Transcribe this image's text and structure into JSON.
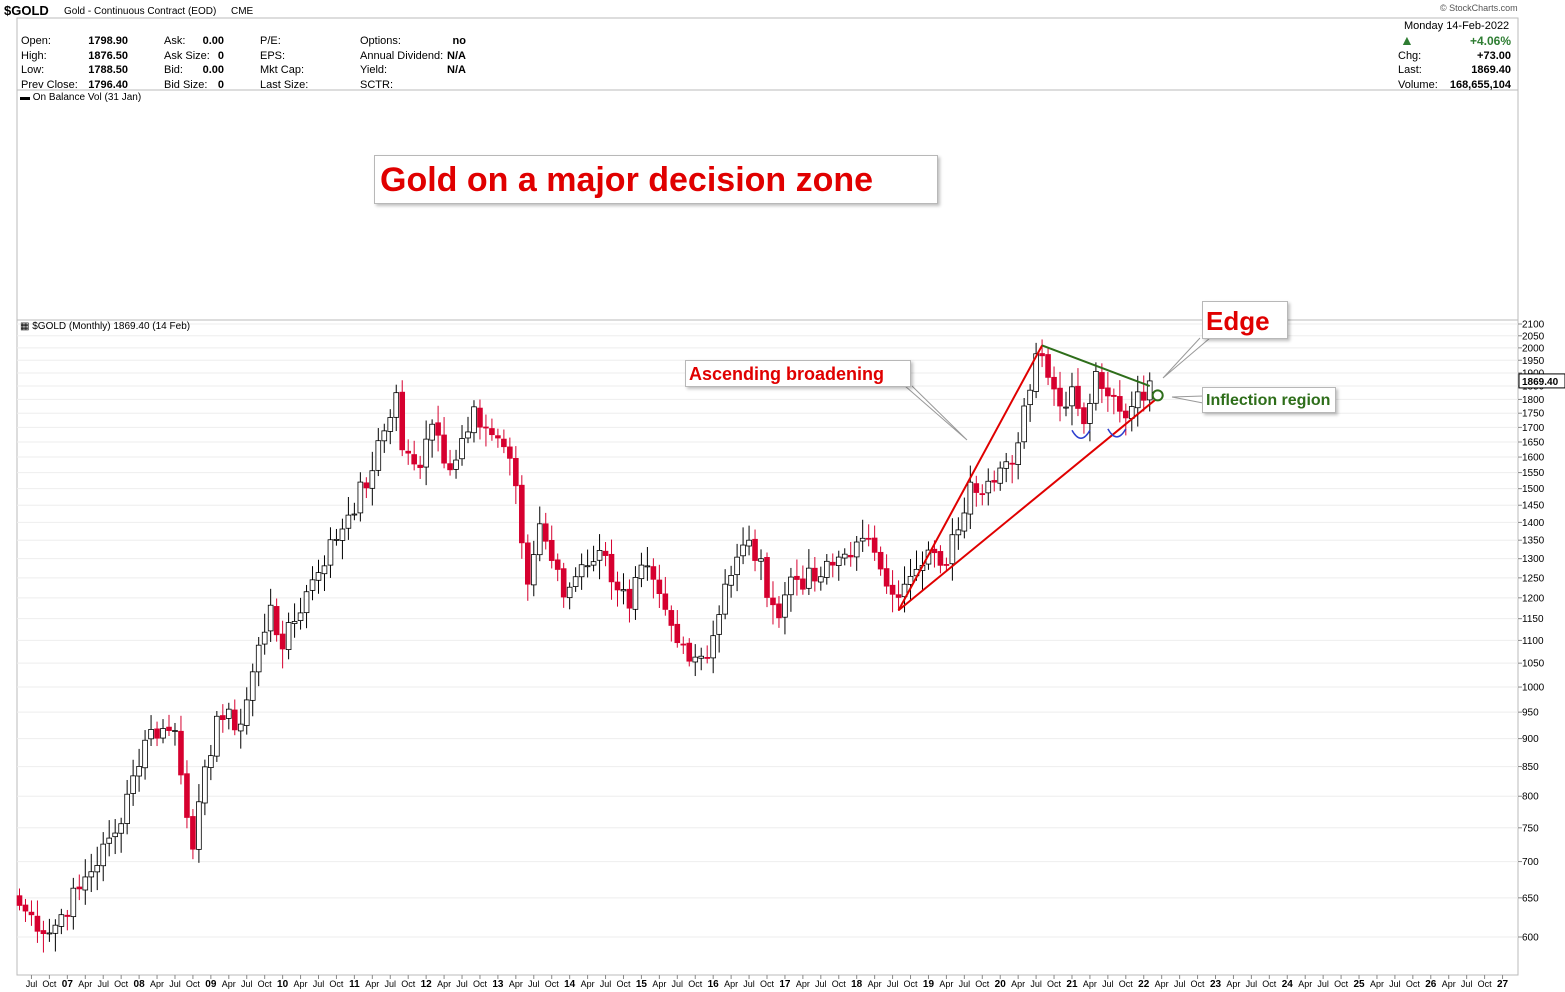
{
  "header": {
    "symbol": "$GOLD",
    "description": "Gold - Continuous Contract (EOD)",
    "exchange": "CME",
    "watermark": "© StockCharts.com",
    "date": "Monday  14-Feb-2022",
    "stats_col1": [
      {
        "label": "Open:",
        "value": "1798.90"
      },
      {
        "label": "High:",
        "value": "1876.50"
      },
      {
        "label": "Low:",
        "value": "1788.50"
      },
      {
        "label": "Prev Close:",
        "value": "1796.40"
      }
    ],
    "stats_col2": [
      {
        "label": "Ask:",
        "value": "0.00"
      },
      {
        "label": "Ask Size:",
        "value": "0"
      },
      {
        "label": "Bid:",
        "value": "0.00"
      },
      {
        "label": "Bid Size:",
        "value": "0"
      }
    ],
    "stats_col3": [
      {
        "label": "P/E:",
        "value": ""
      },
      {
        "label": "EPS:",
        "value": ""
      },
      {
        "label": "Mkt Cap:",
        "value": ""
      },
      {
        "label": "Last Size:",
        "value": ""
      }
    ],
    "stats_col4": [
      {
        "label": "Options:",
        "value": "no"
      },
      {
        "label": "Annual Dividend:",
        "value": "N/A"
      },
      {
        "label": "Yield:",
        "value": "N/A"
      },
      {
        "label": "SCTR:",
        "value": ""
      }
    ],
    "right_stats": [
      {
        "label": "",
        "value": "+4.06%"
      },
      {
        "label": "Chg:",
        "value": "+73.00"
      },
      {
        "label": "Last:",
        "value": "1869.40"
      },
      {
        "label": "Volume:",
        "value": "168,655,104"
      }
    ],
    "up_color": "#2e7d32"
  },
  "indicator_panel": {
    "legend": "On Balance Vol (31 Jan)"
  },
  "price_panel": {
    "legend": "$GOLD (Monthly) 1869.40 (14 Feb)",
    "last_price_label": "1869.40"
  },
  "annotations": {
    "title": "Gold on a major decision zone",
    "ascending": "Ascending broadening",
    "edge": "Edge",
    "inflection": "Inflection region",
    "red": "#e00000",
    "green": "#2e6e1a"
  },
  "chart_data": {
    "type": "candlestick",
    "interval": "monthly",
    "y_axis_ticks": [
      600,
      650,
      700,
      750,
      800,
      850,
      900,
      950,
      1000,
      1050,
      1100,
      1150,
      1200,
      1250,
      1300,
      1350,
      1400,
      1450,
      1500,
      1550,
      1600,
      1650,
      1700,
      1750,
      1800,
      1850,
      1900,
      1950,
      2000,
      2050,
      2100
    ],
    "ylim": [
      560,
      2100
    ],
    "x_axis_labels": [
      "Jul",
      "Oct",
      "07",
      "Apr",
      "Jul",
      "Oct",
      "08",
      "Apr",
      "Jul",
      "Oct",
      "09",
      "Apr",
      "Jul",
      "Oct",
      "10",
      "Apr",
      "Jul",
      "Oct",
      "11",
      "Apr",
      "Jul",
      "Oct",
      "12",
      "Apr",
      "Jul",
      "Oct",
      "13",
      "Apr",
      "Jul",
      "Oct",
      "14",
      "Apr",
      "Jul",
      "Oct",
      "15",
      "Apr",
      "Jul",
      "Oct",
      "16",
      "Apr",
      "Jul",
      "Oct",
      "17",
      "Apr",
      "Jul",
      "Oct",
      "18",
      "Apr",
      "Jul",
      "Oct",
      "19",
      "Apr",
      "Jul",
      "Oct",
      "20",
      "Apr",
      "Jul",
      "Oct",
      "21",
      "Apr",
      "Jul",
      "Oct",
      "22",
      "Apr",
      "Jul",
      "Oct",
      "23",
      "Apr",
      "Jul",
      "Oct",
      "24",
      "Apr",
      "Jul",
      "Oct",
      "25",
      "Apr",
      "Jul",
      "Oct",
      "26",
      "Apr",
      "Jul",
      "Oct",
      "27"
    ],
    "start": "2006-05",
    "anchor_closes": [
      [
        "2006-05",
        640
      ],
      [
        "2006-10",
        605
      ],
      [
        "2007-03",
        662
      ],
      [
        "2007-09",
        742
      ],
      [
        "2007-12",
        834
      ],
      [
        "2008-03",
        917
      ],
      [
        "2008-07",
        915
      ],
      [
        "2008-10",
        718
      ],
      [
        "2009-02",
        942
      ],
      [
        "2009-06",
        927
      ],
      [
        "2009-11",
        1182
      ],
      [
        "2010-01",
        1081
      ],
      [
        "2010-06",
        1245
      ],
      [
        "2010-12",
        1421
      ],
      [
        "2011-04",
        1556
      ],
      [
        "2011-08",
        1825
      ],
      [
        "2011-09",
        1624
      ],
      [
        "2011-12",
        1566
      ],
      [
        "2012-02",
        1711
      ],
      [
        "2012-05",
        1559
      ],
      [
        "2012-09",
        1773
      ],
      [
        "2012-12",
        1675
      ],
      [
        "2013-03",
        1596
      ],
      [
        "2013-06",
        1234
      ],
      [
        "2013-08",
        1396
      ],
      [
        "2013-12",
        1202
      ],
      [
        "2014-03",
        1284
      ],
      [
        "2014-06",
        1322
      ],
      [
        "2014-11",
        1175
      ],
      [
        "2015-01",
        1283
      ],
      [
        "2015-07",
        1095
      ],
      [
        "2015-11",
        1065
      ],
      [
        "2015-12",
        1061
      ],
      [
        "2016-03",
        1234
      ],
      [
        "2016-07",
        1350
      ],
      [
        "2016-12",
        1152
      ],
      [
        "2017-02",
        1252
      ],
      [
        "2017-06",
        1242
      ],
      [
        "2017-09",
        1283
      ],
      [
        "2018-01",
        1345
      ],
      [
        "2018-04",
        1317
      ],
      [
        "2018-08",
        1201
      ],
      [
        "2018-12",
        1282
      ],
      [
        "2019-02",
        1316
      ],
      [
        "2019-04",
        1284
      ],
      [
        "2019-08",
        1520
      ],
      [
        "2019-12",
        1520
      ],
      [
        "2020-03",
        1577
      ],
      [
        "2020-07",
        1976
      ],
      [
        "2020-08",
        1968
      ],
      [
        "2020-11",
        1776
      ],
      [
        "2021-01",
        1847
      ],
      [
        "2021-03",
        1713
      ],
      [
        "2021-05",
        1906
      ],
      [
        "2021-07",
        1813
      ],
      [
        "2021-09",
        1757
      ],
      [
        "2021-11",
        1774
      ],
      [
        "2021-12",
        1828
      ],
      [
        "2022-01",
        1797
      ],
      [
        "2022-02",
        1869.4
      ]
    ],
    "trend_lines": [
      {
        "name": "broadening upper",
        "color": "red",
        "from": [
          "2018-08",
          1170
        ],
        "to": [
          "2020-08",
          2010
        ]
      },
      {
        "name": "broadening lower",
        "color": "red",
        "from": [
          "2018-08",
          1170
        ],
        "to": [
          "2022-03",
          1800
        ]
      },
      {
        "name": "descending edge",
        "color": "green",
        "from": [
          "2020-08",
          2010
        ],
        "to": [
          "2022-02",
          1850
        ]
      }
    ],
    "last_value": 1869.4
  }
}
